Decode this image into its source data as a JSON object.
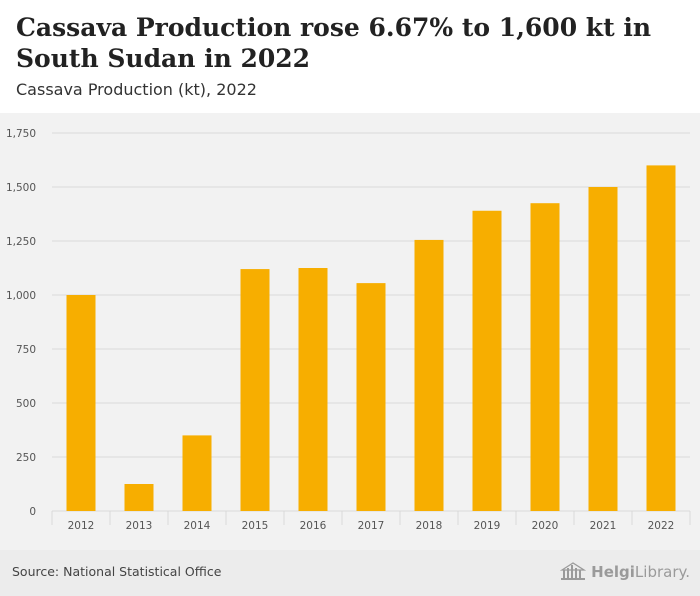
{
  "header": {
    "title": "Cassava Production rose 6.67% to 1,600 kt in South Sudan in 2022",
    "subtitle": "Cassava Production (kt), 2022"
  },
  "footer": {
    "source": "Source: National Statistical Office",
    "brand_bold": "Helgi",
    "brand_rest": "Library."
  },
  "colors": {
    "bar": "#f7ae00",
    "grid": "#d9d9d9",
    "plot_bg": "#f2f2f2",
    "axis_text": "#555555"
  },
  "chart_data": {
    "type": "bar",
    "categories": [
      "2012",
      "2013",
      "2014",
      "2015",
      "2016",
      "2017",
      "2018",
      "2019",
      "2020",
      "2021",
      "2022"
    ],
    "values": [
      1000,
      125,
      350,
      1120,
      1125,
      1055,
      1255,
      1390,
      1425,
      1500,
      1600
    ],
    "yticks": [
      0,
      250,
      500,
      750,
      1000,
      1250,
      1500,
      1750
    ],
    "ytick_labels": [
      "0",
      "250",
      "500",
      "750",
      "1,000",
      "1,250",
      "1,500",
      "1,750"
    ],
    "ylim": [
      0,
      1750
    ],
    "grid": true,
    "legend": "none",
    "title": "Cassava Production rose 6.67% to 1,600 kt in South Sudan in 2022",
    "subtitle": "Cassava Production (kt), 2022",
    "xlabel": "",
    "ylabel": ""
  }
}
